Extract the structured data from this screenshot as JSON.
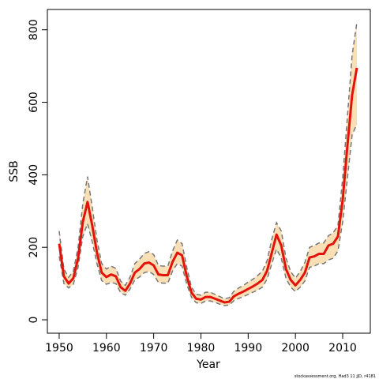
{
  "chart_data": {
    "type": "line",
    "xlabel": "Year",
    "ylabel": "SSB",
    "footnote": "stockassessment.org, Had3 11 jJD, r4181",
    "x": [
      1950,
      1951,
      1952,
      1953,
      1954,
      1955,
      1956,
      1957,
      1958,
      1959,
      1960,
      1961,
      1962,
      1963,
      1964,
      1965,
      1966,
      1967,
      1968,
      1969,
      1970,
      1971,
      1972,
      1973,
      1974,
      1975,
      1976,
      1977,
      1978,
      1979,
      1980,
      1981,
      1982,
      1983,
      1984,
      1985,
      1986,
      1987,
      1988,
      1989,
      1990,
      1991,
      1992,
      1993,
      1994,
      1995,
      1996,
      1997,
      1998,
      1999,
      2000,
      2001,
      2002,
      2003,
      2004,
      2005,
      2006,
      2007,
      2008,
      2009,
      2010,
      2011,
      2012,
      2013
    ],
    "values": [
      210,
      120,
      100,
      115,
      170,
      270,
      325,
      260,
      185,
      130,
      118,
      125,
      120,
      90,
      80,
      100,
      130,
      140,
      155,
      158,
      150,
      125,
      123,
      123,
      160,
      185,
      178,
      120,
      75,
      58,
      56,
      63,
      63,
      58,
      53,
      48,
      50,
      65,
      72,
      78,
      85,
      92,
      100,
      110,
      135,
      185,
      235,
      205,
      140,
      110,
      95,
      110,
      130,
      172,
      175,
      182,
      182,
      205,
      210,
      230,
      330,
      480,
      620,
      695
    ],
    "lower": [
      175,
      100,
      88,
      98,
      145,
      230,
      265,
      215,
      155,
      108,
      98,
      103,
      100,
      75,
      68,
      85,
      110,
      118,
      130,
      133,
      125,
      103,
      101,
      101,
      135,
      155,
      148,
      98,
      62,
      47,
      45,
      52,
      52,
      48,
      43,
      39,
      41,
      53,
      59,
      64,
      70,
      76,
      82,
      90,
      112,
      155,
      195,
      170,
      115,
      90,
      78,
      90,
      107,
      145,
      148,
      155,
      155,
      165,
      170,
      190,
      270,
      390,
      510,
      540
    ],
    "upper": [
      245,
      140,
      117,
      135,
      200,
      320,
      395,
      310,
      220,
      155,
      140,
      148,
      142,
      107,
      95,
      118,
      155,
      167,
      183,
      188,
      180,
      150,
      148,
      148,
      190,
      220,
      210,
      145,
      90,
      70,
      68,
      76,
      76,
      70,
      64,
      58,
      61,
      79,
      88,
      95,
      104,
      112,
      122,
      134,
      163,
      222,
      268,
      245,
      170,
      133,
      115,
      133,
      158,
      200,
      205,
      212,
      212,
      232,
      240,
      260,
      390,
      560,
      730,
      820
    ],
    "color": "#e3120b",
    "band_color": "#f8dfb5",
    "bound_color": "#777777",
    "xlim": [
      1947.5,
      2015.85
    ],
    "ylim": [
      -37,
      856
    ],
    "xticks": [
      1950,
      1960,
      1970,
      1980,
      1990,
      2000,
      2010
    ],
    "yticks": [
      0,
      200,
      400,
      600,
      800
    ]
  }
}
